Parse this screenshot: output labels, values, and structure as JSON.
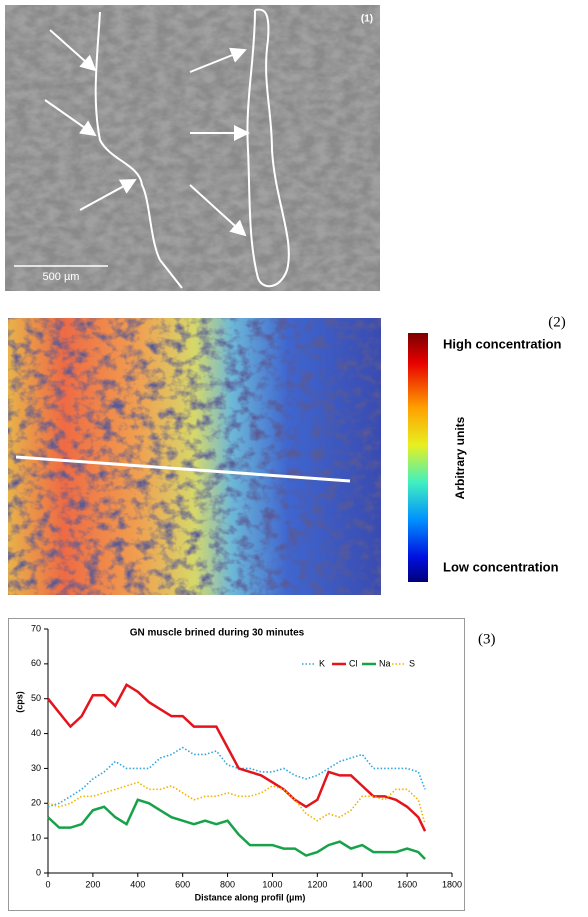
{
  "figure": {
    "panel_labels": [
      "(1)",
      "(2)",
      "(3)"
    ],
    "scale_bar": "500 µm",
    "colorbar": {
      "high": "High concentration",
      "title": "Arbitrary units",
      "low": "Low concentration"
    }
  },
  "chart_data": {
    "type": "line",
    "title": "GN muscle brined during 30 minutes",
    "x_label": "Distance along profil (µm)",
    "y_label": "(cps)",
    "x": [
      0,
      50,
      100,
      150,
      200,
      250,
      300,
      350,
      400,
      450,
      500,
      550,
      600,
      650,
      700,
      750,
      800,
      850,
      900,
      950,
      1000,
      1050,
      1100,
      1150,
      1200,
      1250,
      1300,
      1350,
      1400,
      1450,
      1500,
      1550,
      1600,
      1650,
      1680
    ],
    "series": [
      {
        "name": "K",
        "color": "#2fa6de",
        "style": "dotted",
        "values": [
          19,
          20,
          22,
          24,
          27,
          29,
          32,
          30,
          30,
          30,
          33,
          34,
          36,
          34,
          34,
          35,
          31,
          30,
          30,
          29,
          29,
          30,
          28,
          27,
          28,
          30,
          32,
          33,
          34,
          30,
          30,
          30,
          30,
          29,
          24
        ]
      },
      {
        "name": "Cl",
        "color": "#e3141b",
        "style": "solid",
        "values": [
          50,
          46,
          42,
          45,
          51,
          51,
          48,
          54,
          52,
          49,
          47,
          45,
          45,
          42,
          42,
          42,
          36,
          30,
          29,
          28,
          26,
          24,
          21,
          19,
          21,
          29,
          28,
          28,
          25,
          22,
          22,
          21,
          19,
          16,
          12
        ]
      },
      {
        "name": "Na",
        "color": "#17a24a",
        "style": "solid",
        "values": [
          16,
          13,
          13,
          14,
          18,
          19,
          16,
          14,
          21,
          20,
          18,
          16,
          15,
          14,
          15,
          14,
          15,
          11,
          8,
          8,
          8,
          7,
          7,
          5,
          6,
          8,
          9,
          7,
          8,
          6,
          6,
          6,
          7,
          6,
          4
        ]
      },
      {
        "name": "S",
        "color": "#f2b200",
        "style": "dotted",
        "values": [
          20,
          19,
          20,
          22,
          22,
          23,
          24,
          25,
          26,
          24,
          24,
          25,
          23,
          21,
          22,
          22,
          23,
          22,
          22,
          23,
          25,
          24,
          21,
          17,
          15,
          17,
          16,
          18,
          22,
          22,
          21,
          24,
          24,
          21,
          14
        ]
      }
    ],
    "xlim": [
      0,
      1800
    ],
    "xticks": [
      0,
      200,
      400,
      600,
      800,
      1000,
      1200,
      1400,
      1600,
      1800
    ],
    "ylim": [
      0,
      70
    ],
    "yticks": [
      0,
      10,
      20,
      30,
      40,
      50,
      60,
      70
    ],
    "grid": false,
    "legend": "top-right"
  }
}
